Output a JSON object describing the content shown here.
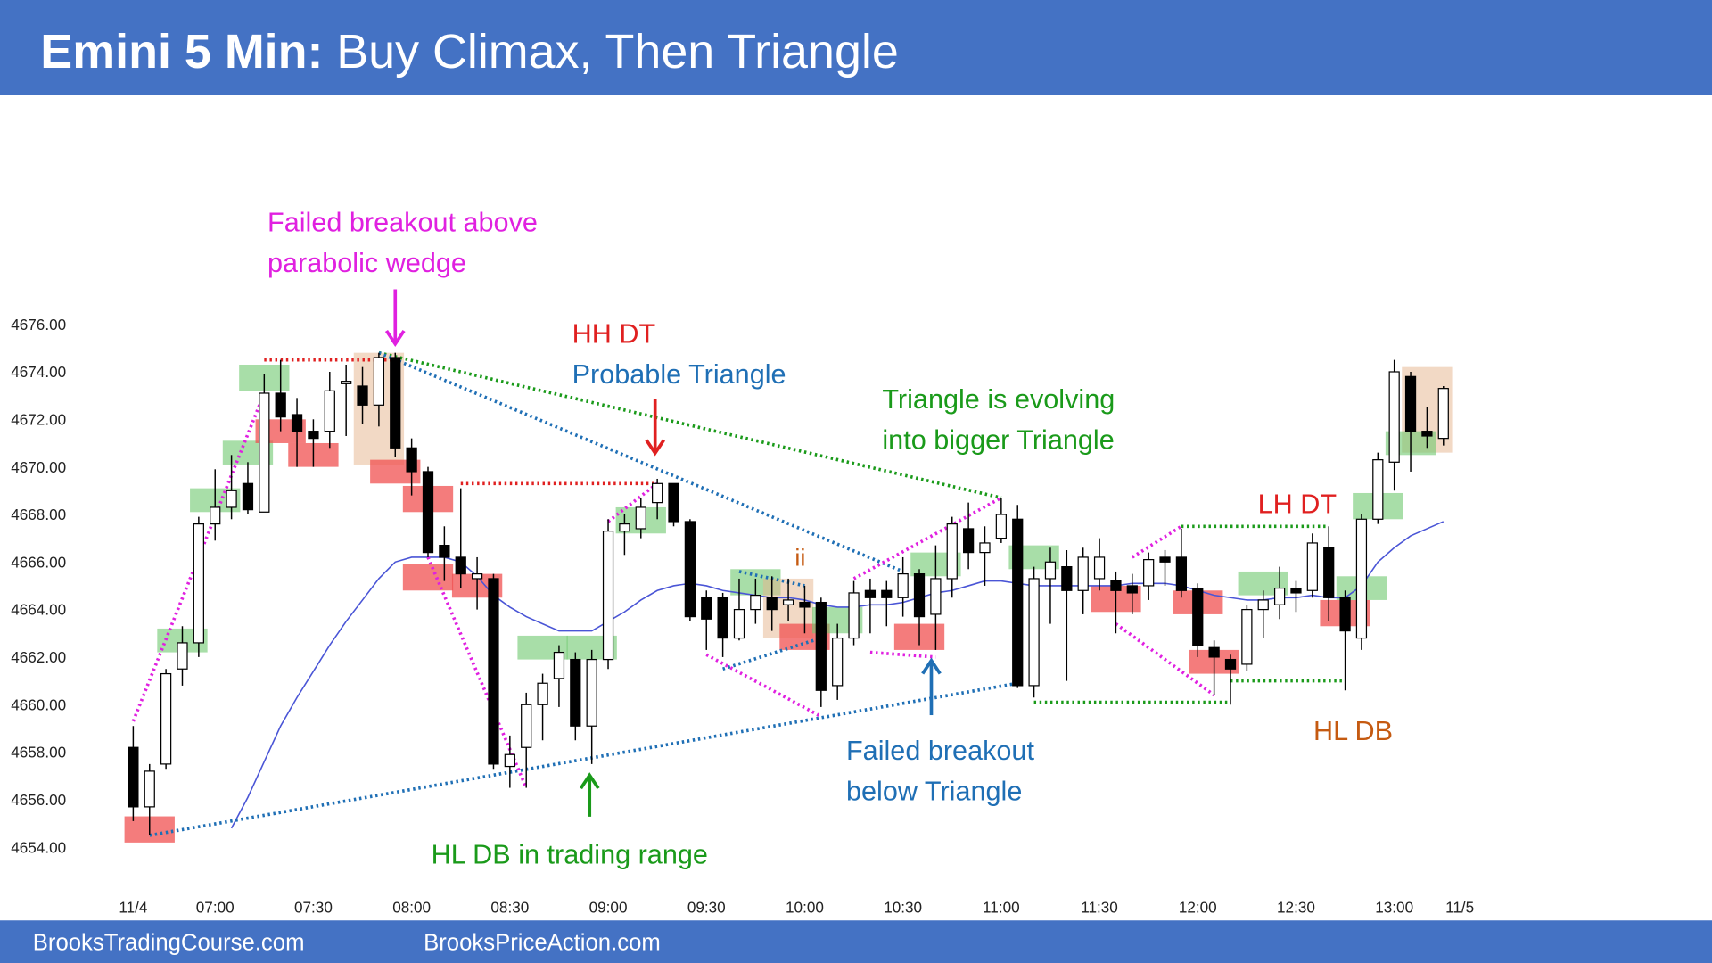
{
  "chart_data": {
    "type": "candlestick",
    "title_prefix": "Emini 5 Min:",
    "title": "Buy Climax, Then Triangle",
    "categories": [
      "11/4",
      null,
      null,
      null,
      null,
      "07:00",
      null,
      null,
      null,
      null,
      null,
      "07:30",
      null,
      null,
      null,
      null,
      null,
      "08:00",
      null,
      null,
      null,
      null,
      null,
      "08:30",
      null,
      null,
      null,
      null,
      null,
      "09:00",
      null,
      null,
      null,
      null,
      null,
      "09:30",
      null,
      null,
      null,
      null,
      null,
      "10:00",
      null,
      null,
      null,
      null,
      null,
      "10:30",
      null,
      null,
      null,
      null,
      null,
      "11:00",
      null,
      null,
      null,
      null,
      null,
      "11:30",
      null,
      null,
      null,
      null,
      null,
      "12:00",
      null,
      null,
      null,
      null,
      null,
      "12:30",
      null,
      null,
      null,
      null,
      null,
      "13:00",
      null,
      null,
      null,
      "11/5"
    ],
    "open": [
      4658.2,
      4655.7,
      4657.5,
      4661.5,
      4662.6,
      4667.6,
      4668.3,
      4669.3,
      4668.1,
      4673.1,
      4672.2,
      4671.5,
      4671.5,
      4673.5,
      4673.4,
      4672.6,
      4674.6,
      4670.8,
      4669.8,
      4666.7,
      4666.2,
      4665.3,
      4665.3,
      4657.4,
      4658.2,
      4660,
      4661.1,
      4661.9,
      4659.1,
      4661.9,
      4667.3,
      4667.4,
      4668.5,
      4669.3,
      4667.7,
      4664.5,
      4664.5,
      4662.8,
      4664,
      4664.5,
      4664.2,
      4664.3,
      4664.3,
      4660.8,
      4662.8,
      4664.8,
      4664.8,
      4664.5,
      4665.5,
      4663.8,
      4665.3,
      4667.4,
      4666.4,
      4667,
      4667.8,
      4660.8,
      4665.3,
      4665.8,
      4664.8,
      4665.3,
      4665.2,
      4665,
      4665,
      4666.2,
      4666.2,
      4664.9,
      4662.4,
      4661.9,
      4661.7,
      4664,
      4664.2,
      4664.9,
      4664.8,
      4666.6,
      4664.5,
      4662.8,
      4667.8,
      4670.2,
      4673.8,
      4671.5,
      4671.2,
      null
    ],
    "high": [
      4659.1,
      4657.5,
      4661.5,
      4663.3,
      4667.9,
      4669.9,
      4670.5,
      4670.2,
      4673.9,
      4674.5,
      4672.9,
      4672,
      4674,
      4674.3,
      4674.2,
      4674.8,
      4674.8,
      4671.2,
      4670,
      4667.5,
      4669.1,
      4666.2,
      4665.5,
      4658.7,
      4660.5,
      4661.3,
      4662.5,
      4662.2,
      4662.3,
      4667.8,
      4668,
      4668.7,
      4669.5,
      4669.3,
      4667.8,
      4664.8,
      4664.7,
      4665.3,
      4665.3,
      4665.4,
      4665.3,
      4665,
      4664.5,
      4663.4,
      4665.2,
      4665.3,
      4665.2,
      4666.2,
      4665.7,
      4666.7,
      4667.9,
      4668.5,
      4667.5,
      4668.7,
      4668.4,
      4665.8,
      4666.6,
      4666.5,
      4666.6,
      4667,
      4665.6,
      4665.5,
      4666.4,
      4666.5,
      4667.4,
      4665.1,
      4662.7,
      4662.1,
      4664.2,
      4664.8,
      4665.8,
      4665.2,
      4667.2,
      4667.5,
      4664.8,
      4668,
      4670.6,
      4674.5,
      4674,
      4672.5,
      4673.4,
      null
    ],
    "low": [
      4655.1,
      4654.5,
      4657.3,
      4660.8,
      4662,
      4666.9,
      4667.8,
      4668,
      4668.1,
      4671.5,
      4670,
      4670,
      4670.8,
      4671.3,
      4671.8,
      4671.7,
      4670.4,
      4668.8,
      4666.2,
      4665.2,
      4664.9,
      4664,
      4657.3,
      4656.5,
      4656.5,
      4658.5,
      4659.9,
      4658.5,
      4657.5,
      4661.5,
      4666.3,
      4667,
      4667.8,
      4667.5,
      4663.5,
      4662.3,
      4662,
      4662.7,
      4663.4,
      4663.1,
      4663.5,
      4663,
      4659.9,
      4660.2,
      4662.5,
      4663,
      4663.3,
      4663.7,
      4662.5,
      4662.3,
      4664.5,
      4665.7,
      4665,
      4666.8,
      4660.7,
      4660.3,
      4663.4,
      4661,
      4663.8,
      4664.8,
      4663,
      4663.8,
      4664.4,
      4665,
      4664.5,
      4662,
      4660.4,
      4660,
      4661.4,
      4662.8,
      4663.6,
      4663.9,
      4664.5,
      4663.5,
      4660.6,
      4662.3,
      4667.6,
      4669,
      4669.8,
      4670.8,
      4670.9,
      null
    ],
    "close": [
      4655.7,
      4657.2,
      4661.3,
      4662.6,
      4667.6,
      4668.3,
      4669,
      4668.2,
      4673.1,
      4672.1,
      4671.5,
      4671.2,
      4673.2,
      4673.6,
      4672.6,
      4674.6,
      4670.8,
      4669.8,
      4666.4,
      4666.2,
      4665.5,
      4665.5,
      4657.5,
      4657.9,
      4660,
      4660.9,
      4662.2,
      4659.1,
      4661.9,
      4667.3,
      4667.6,
      4668.3,
      4669.3,
      4667.7,
      4663.7,
      4663.6,
      4662.8,
      4664,
      4664.6,
      4664,
      4664.4,
      4664.1,
      4660.6,
      4662.8,
      4664.7,
      4664.5,
      4664.5,
      4665.5,
      4663.7,
      4665.3,
      4667.6,
      4666.4,
      4666.8,
      4668,
      4660.8,
      4665.3,
      4666,
      4664.8,
      4666.2,
      4666.2,
      4664.8,
      4664.7,
      4666.1,
      4666,
      4664.8,
      4662.5,
      4662,
      4661.5,
      4664,
      4664.4,
      4664.9,
      4664.7,
      4666.8,
      4664.5,
      4663.1,
      4667.8,
      4670.3,
      4674,
      4671.5,
      4671.3,
      4673.3,
      null
    ],
    "ma": {
      "color": "#4a55d6",
      "values": [
        null,
        null,
        null,
        null,
        null,
        null,
        4654.8,
        4656.1,
        4657.6,
        4659.1,
        4660.3,
        4661.4,
        4662.5,
        4663.5,
        4664.4,
        4665.3,
        4666.0,
        4666.2,
        4666.2,
        4666.2,
        4666.0,
        4665.4,
        4664.6,
        4664.1,
        4663.7,
        4663.4,
        4663.1,
        4663.1,
        4663.1,
        4663.5,
        4663.9,
        4664.4,
        4664.8,
        4665.0,
        4665.1,
        4665.0,
        4664.8,
        4664.7,
        4664.6,
        4664.5,
        4664.5,
        4664.4,
        4664.2,
        4664.1,
        4664.1,
        4664.2,
        4664.2,
        4664.3,
        4664.5,
        4664.7,
        4664.8,
        4665.0,
        4665.2,
        4665.2,
        4665.1,
        4665.0,
        4665.0,
        4665.0,
        4665.0,
        4665.0,
        4665.0,
        4665.1,
        4665.1,
        4665.1,
        4665.0,
        4664.8,
        4664.6,
        4664.5,
        4664.4,
        4664.4,
        4664.5,
        4664.5,
        4664.6,
        4664.5,
        4664.5,
        4665.0,
        4666.0,
        4666.6,
        4667.1,
        4667.4,
        4667.7,
        null
      ]
    },
    "ylim": [
      4654,
      4676
    ],
    "yticks": [
      {
        "value": 4654,
        "label": "4654.00"
      },
      {
        "value": 4656,
        "label": "4656.00"
      },
      {
        "value": 4658,
        "label": "4658.00"
      },
      {
        "value": 4660,
        "label": "4660.00"
      },
      {
        "value": 4662,
        "label": "4662.00"
      },
      {
        "value": 4664,
        "label": "4664.00"
      },
      {
        "value": 4666,
        "label": "4666.00"
      },
      {
        "value": 4668,
        "label": "4668.00"
      },
      {
        "value": 4670,
        "label": "4670.00"
      },
      {
        "value": 4672,
        "label": "4672.00"
      },
      {
        "value": 4674,
        "label": "4674.00"
      },
      {
        "value": 4676,
        "label": "4676.00"
      }
    ],
    "zones": [
      {
        "color": "red",
        "bar": 1,
        "low": 4654.2,
        "high": 4655.3
      },
      {
        "color": "green",
        "bar": 3,
        "low": 4662.2,
        "high": 4663.2
      },
      {
        "color": "green",
        "bar": 5,
        "low": 4668.1,
        "high": 4669.1
      },
      {
        "color": "green",
        "bar": 7,
        "low": 4670.1,
        "high": 4671.1
      },
      {
        "color": "green",
        "bar": 8,
        "low": 4673.2,
        "high": 4674.3
      },
      {
        "color": "red",
        "bar": 9,
        "low": 4671,
        "high": 4672
      },
      {
        "color": "red",
        "bar": 11,
        "low": 4670,
        "high": 4671
      },
      {
        "color": "tan",
        "bar": 15,
        "low": 4670.1,
        "high": 4674.8
      },
      {
        "color": "red",
        "bar": 16,
        "low": 4669.3,
        "high": 4670.3
      },
      {
        "color": "red",
        "bar": 18,
        "low": 4668.1,
        "high": 4669.2
      },
      {
        "color": "red",
        "bar": 18,
        "low": 4664.8,
        "high": 4665.9
      },
      {
        "color": "red",
        "bar": 21,
        "low": 4664.5,
        "high": 4665.5
      },
      {
        "color": "green",
        "bar": 25,
        "low": 4661.9,
        "high": 4662.9
      },
      {
        "color": "green",
        "bar": 28,
        "low": 4661.9,
        "high": 4662.9
      },
      {
        "color": "green",
        "bar": 31,
        "low": 4667.2,
        "high": 4668.3
      },
      {
        "color": "green",
        "bar": 38,
        "low": 4664.6,
        "high": 4665.7
      },
      {
        "color": "tan",
        "bar": 40,
        "low": 4662.8,
        "high": 4665.3
      },
      {
        "color": "red",
        "bar": 41,
        "low": 4662.3,
        "high": 4663.4
      },
      {
        "color": "green",
        "bar": 43,
        "low": 4663,
        "high": 4664.1
      },
      {
        "color": "red",
        "bar": 48,
        "low": 4662.3,
        "high": 4663.4
      },
      {
        "color": "green",
        "bar": 49,
        "low": 4665.4,
        "high": 4666.4
      },
      {
        "color": "green",
        "bar": 55,
        "low": 4665.7,
        "high": 4666.7
      },
      {
        "color": "red",
        "bar": 60,
        "low": 4663.9,
        "high": 4665
      },
      {
        "color": "red",
        "bar": 65,
        "low": 4663.8,
        "high": 4664.8
      },
      {
        "color": "red",
        "bar": 66,
        "low": 4661.3,
        "high": 4662.3
      },
      {
        "color": "green",
        "bar": 69,
        "low": 4664.6,
        "high": 4665.6
      },
      {
        "color": "red",
        "bar": 74,
        "low": 4663.3,
        "high": 4664.4
      },
      {
        "color": "green",
        "bar": 75,
        "low": 4664.4,
        "high": 4665.4
      },
      {
        "color": "green",
        "bar": 76,
        "low": 4667.8,
        "high": 4668.9
      },
      {
        "color": "tan",
        "bar": 79,
        "low": 4670.6,
        "high": 4674.2
      },
      {
        "color": "green",
        "bar": 78,
        "low": 4670.5,
        "high": 4671.5
      }
    ],
    "lines": [
      {
        "color": "#e020e0",
        "points": [
          [
            0,
            4659.3
          ],
          [
            8,
            4673.1
          ]
        ]
      },
      {
        "color": "#e02020",
        "points": [
          [
            8,
            4674.5
          ],
          [
            16,
            4674.5
          ]
        ]
      },
      {
        "color": "#1a9a1a",
        "points": [
          [
            15,
            4674.8
          ],
          [
            53,
            4668.7
          ]
        ]
      },
      {
        "color": "#1f6fb5",
        "points": [
          [
            15,
            4674.8
          ],
          [
            47,
            4665.6
          ]
        ]
      },
      {
        "color": "#1f6fb5",
        "points": [
          [
            1,
            4654.5
          ],
          [
            54,
            4660.9
          ]
        ]
      },
      {
        "color": "#e02020",
        "points": [
          [
            20,
            4669.3
          ],
          [
            32,
            4669.3
          ]
        ]
      },
      {
        "color": "#e020e0",
        "points": [
          [
            18,
            4666.2
          ],
          [
            24,
            4656.5
          ]
        ]
      },
      {
        "color": "#e020e0",
        "points": [
          [
            29,
            4667.7
          ],
          [
            32,
            4669.3
          ]
        ]
      },
      {
        "color": "#e020e0",
        "points": [
          [
            35,
            4662.1
          ],
          [
            42,
            4659.5
          ]
        ]
      },
      {
        "color": "#1f6fb5",
        "points": [
          [
            36,
            4661.5
          ],
          [
            42,
            4662.8
          ]
        ]
      },
      {
        "color": "#1f6fb5",
        "points": [
          [
            37,
            4665.6
          ],
          [
            41,
            4665
          ]
        ]
      },
      {
        "color": "#e020e0",
        "points": [
          [
            44,
            4665.3
          ],
          [
            53,
            4668.7
          ]
        ]
      },
      {
        "color": "#e020e0",
        "points": [
          [
            45,
            4662.2
          ],
          [
            49,
            4662
          ]
        ]
      },
      {
        "color": "#1a9a1a",
        "points": [
          [
            55,
            4660.1
          ],
          [
            67,
            4660.1
          ]
        ]
      },
      {
        "color": "#e020e0",
        "points": [
          [
            60,
            4663.4
          ],
          [
            66,
            4660.4
          ]
        ]
      },
      {
        "color": "#e020e0",
        "points": [
          [
            61,
            4666.2
          ],
          [
            64,
            4667.5
          ]
        ]
      },
      {
        "color": "#1a9a1a",
        "points": [
          [
            64,
            4667.5
          ],
          [
            73,
            4667.5
          ]
        ]
      },
      {
        "color": "#1a9a1a",
        "points": [
          [
            67,
            4661
          ],
          [
            74,
            4661
          ]
        ]
      }
    ],
    "annotations": [
      {
        "color": "#e020e0",
        "lines": [
          "Failed breakout above",
          "parabolic wedge"
        ]
      },
      {
        "color": "#e02020",
        "lines": [
          "HH DT"
        ]
      },
      {
        "color": "#1f6fb5",
        "lines": [
          "Probable Triangle"
        ]
      },
      {
        "color": "#1a9a1a",
        "lines": [
          "Triangle is evolving",
          "into bigger Triangle"
        ]
      },
      {
        "color": "#c55a11",
        "lines": [
          "ii"
        ]
      },
      {
        "color": "#e02020",
        "lines": [
          "LH DT"
        ]
      },
      {
        "color": "#c55a11",
        "lines": [
          "HL DB"
        ]
      },
      {
        "color": "#1f6fb5",
        "lines": [
          "Failed breakout",
          "below Triangle"
        ]
      },
      {
        "color": "#1a9a1a",
        "lines": [
          "HL DB in trading range"
        ]
      }
    ]
  },
  "footer": [
    "BrooksTradingCourse.com",
    "BrooksPriceAction.com"
  ]
}
